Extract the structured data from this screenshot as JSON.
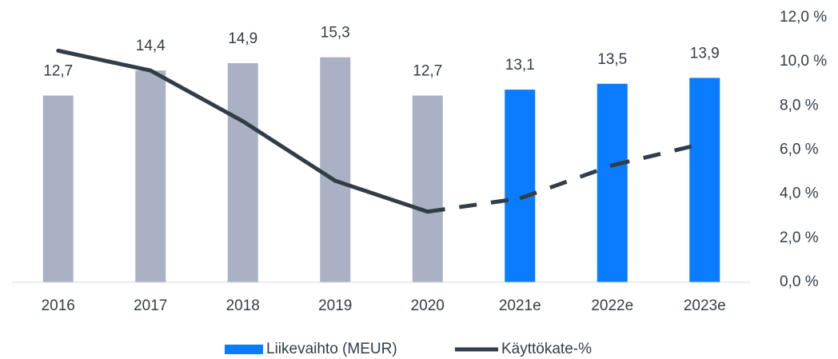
{
  "chart_data": {
    "type": "bar",
    "categories": [
      "2016",
      "2017",
      "2018",
      "2019",
      "2020",
      "2021e",
      "2022e",
      "2023e"
    ],
    "series": [
      {
        "name": "Liikevaihto (MEUR)",
        "type": "bar",
        "color": "#0a7cff",
        "colors": [
          "#abb1c4",
          "#abb1c4",
          "#abb1c4",
          "#abb1c4",
          "#abb1c4",
          "#0a7cff",
          "#0a7cff",
          "#0a7cff"
        ],
        "values": [
          12.7,
          14.4,
          14.9,
          15.3,
          12.7,
          13.1,
          13.5,
          13.9
        ],
        "value_labels": [
          "12,7",
          "14,4",
          "14,9",
          "15,3",
          "12,7",
          "13,1",
          "13,5",
          "13,9"
        ]
      },
      {
        "name": "Käyttökate-%",
        "type": "line",
        "axis": "y2",
        "color": "#333d47",
        "values": [
          10.5,
          9.6,
          7.3,
          4.6,
          3.2,
          3.8,
          5.3,
          6.3
        ],
        "styles": [
          "solid",
          "solid",
          "solid",
          "solid",
          "solid",
          "dashed",
          "dashed",
          "dashed"
        ]
      }
    ],
    "ylim": [
      0,
      18
    ],
    "y2lim": [
      0,
      12
    ],
    "y2ticks": [
      {
        "value": 0,
        "label": "0,0 %"
      },
      {
        "value": 2,
        "label": "2,0 %"
      },
      {
        "value": 4,
        "label": "4,0 %"
      },
      {
        "value": 6,
        "label": "6,0 %"
      },
      {
        "value": 8,
        "label": "8,0 %"
      },
      {
        "value": 10,
        "label": "10,0 %"
      },
      {
        "value": 12,
        "label": "12,0 %"
      }
    ],
    "legend": "bottom"
  }
}
